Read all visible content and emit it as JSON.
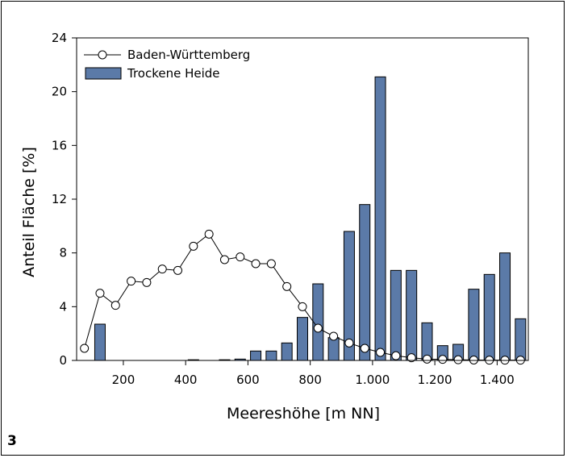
{
  "panel_label": "3",
  "chart_data": {
    "type": "bar",
    "xlabel": "Meereshöhe [m NN]",
    "ylabel": "Anteil Fläche [%]",
    "xlim": [
      50,
      1500
    ],
    "ylim": [
      0,
      24
    ],
    "xticks": [
      200,
      400,
      600,
      800,
      1000,
      1200,
      1400
    ],
    "xtick_labels": [
      "200",
      "400",
      "600",
      "800",
      "1.000",
      "1.200",
      "1.400"
    ],
    "yticks": [
      0,
      4,
      8,
      12,
      16,
      20,
      24
    ],
    "ytick_labels": [
      "0",
      "4",
      "8",
      "12",
      "16",
      "20",
      "24"
    ],
    "legend_position": "top-left",
    "colors": {
      "bar_fill": "#5b7aa8",
      "bar_stroke": "#000000",
      "line": "#000000",
      "marker_fill": "#ffffff"
    },
    "series": [
      {
        "name": "Baden-Württemberg",
        "kind": "line-markers",
        "x": [
          75,
          125,
          175,
          225,
          275,
          325,
          375,
          425,
          475,
          525,
          575,
          625,
          675,
          725,
          775,
          825,
          875,
          925,
          975,
          1025,
          1075,
          1125,
          1175,
          1225,
          1275,
          1325,
          1375,
          1425,
          1475
        ],
        "values": [
          0.9,
          5.0,
          4.1,
          5.9,
          5.8,
          6.8,
          6.7,
          8.5,
          9.4,
          7.5,
          7.7,
          7.2,
          7.2,
          5.5,
          4.0,
          2.4,
          1.8,
          1.3,
          0.9,
          0.6,
          0.35,
          0.2,
          0.1,
          0.08,
          0.05,
          0.03,
          0.02,
          0.02,
          0.02
        ]
      },
      {
        "name": "Trockene Heide",
        "kind": "bar",
        "x": [
          125,
          175,
          225,
          275,
          325,
          375,
          425,
          475,
          525,
          575,
          625,
          675,
          725,
          775,
          825,
          875,
          925,
          975,
          1025,
          1075,
          1125,
          1175,
          1225,
          1275,
          1325,
          1375,
          1425,
          1475
        ],
        "values": [
          2.7,
          0,
          0,
          0,
          0,
          0,
          0.05,
          0,
          0.05,
          0.1,
          0.7,
          0.7,
          1.3,
          3.2,
          5.7,
          1.7,
          9.6,
          11.6,
          21.1,
          6.7,
          6.7,
          2.8,
          1.1,
          1.2,
          5.3,
          6.4,
          8.0,
          3.1
        ]
      }
    ]
  }
}
